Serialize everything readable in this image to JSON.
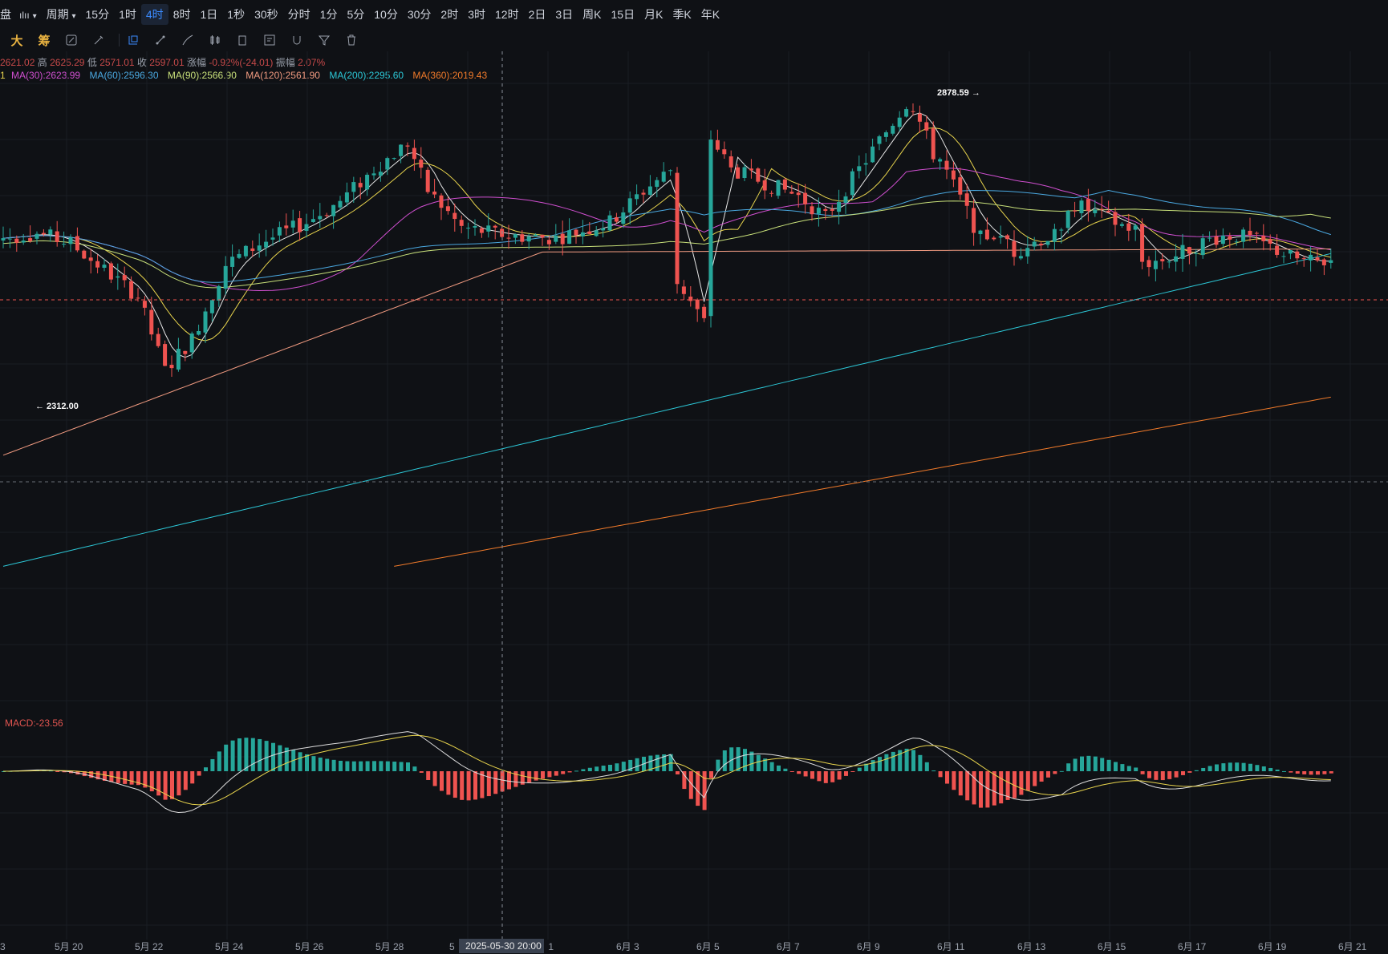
{
  "toolbar": {
    "left_glyph_1": "盘",
    "left_glyph_2": "ılıı",
    "period_label": "周期",
    "intervals": [
      "15分",
      "1时",
      "4时",
      "8时",
      "1日",
      "1秒",
      "30秒",
      "分时",
      "1分",
      "5分",
      "10分",
      "30分",
      "2时",
      "3时",
      "12时",
      "2日",
      "3日",
      "周K",
      "15日",
      "月K",
      "季K",
      "年K"
    ],
    "active_interval": "4时"
  },
  "tools": {
    "big": "大",
    "chip": "筹",
    "icons": [
      "calc-icon",
      "pen-icon",
      "crosshair-icon",
      "line-icon",
      "brush-icon",
      "candle-type-icon",
      "clipboard-icon",
      "note-icon",
      "magnet-icon",
      "filter-icon",
      "trash-icon"
    ]
  },
  "ohlc": {
    "open": "2621.02",
    "high_label": "高",
    "high": "2625.29",
    "low_label": "低",
    "low": "2571.01",
    "close_label": "收",
    "close": "2597.01",
    "change_label": "涨幅",
    "change": "-0.92%(-24.01)",
    "amp_label": "振幅",
    "amp": "2.07%"
  },
  "ma_legend": {
    "partial": "1",
    "ma30": "MA(30):2623.99",
    "ma60": "MA(60):2596.30",
    "ma90": "MA(90):2566.90",
    "ma120": "MA(120):2561.90",
    "ma200": "MA(200):2295.60",
    "ma360": "MA(360):2019.43"
  },
  "annotations": {
    "high_marker": "2878.59 →",
    "low_marker": "← 2312.00"
  },
  "macd_label": "MACD:-23.56",
  "x_axis": {
    "labels": [
      "3",
      "5月 20",
      "5月 22",
      "5月 24",
      "5月 26",
      "5月 28",
      "5",
      "月 1",
      "6月 3",
      "6月 5",
      "6月 7",
      "6月 9",
      "6月 11",
      "6月 13",
      "6月 15",
      "6月 17",
      "6月 19",
      "6月 21"
    ],
    "crosshair_time": "2025-05-30 20:00"
  },
  "colors": {
    "up": "#26a69a",
    "down": "#ef5350",
    "ma5": "#e6e6e6",
    "ma10": "#e8d44d",
    "ma30": "#d04fd0",
    "ma60": "#4aa8e0",
    "ma90": "#c8e07a",
    "ma120": "#f09a80",
    "ma200": "#2cc7d6",
    "ma360": "#f07a2a"
  },
  "chart_data": {
    "type": "candlestick",
    "instrument_interval": "4时",
    "high": 2878.59,
    "low": 2312.0,
    "last_close": 2597.01,
    "x_range": [
      "5月 19",
      "6月 21"
    ],
    "macd": -23.56
  }
}
